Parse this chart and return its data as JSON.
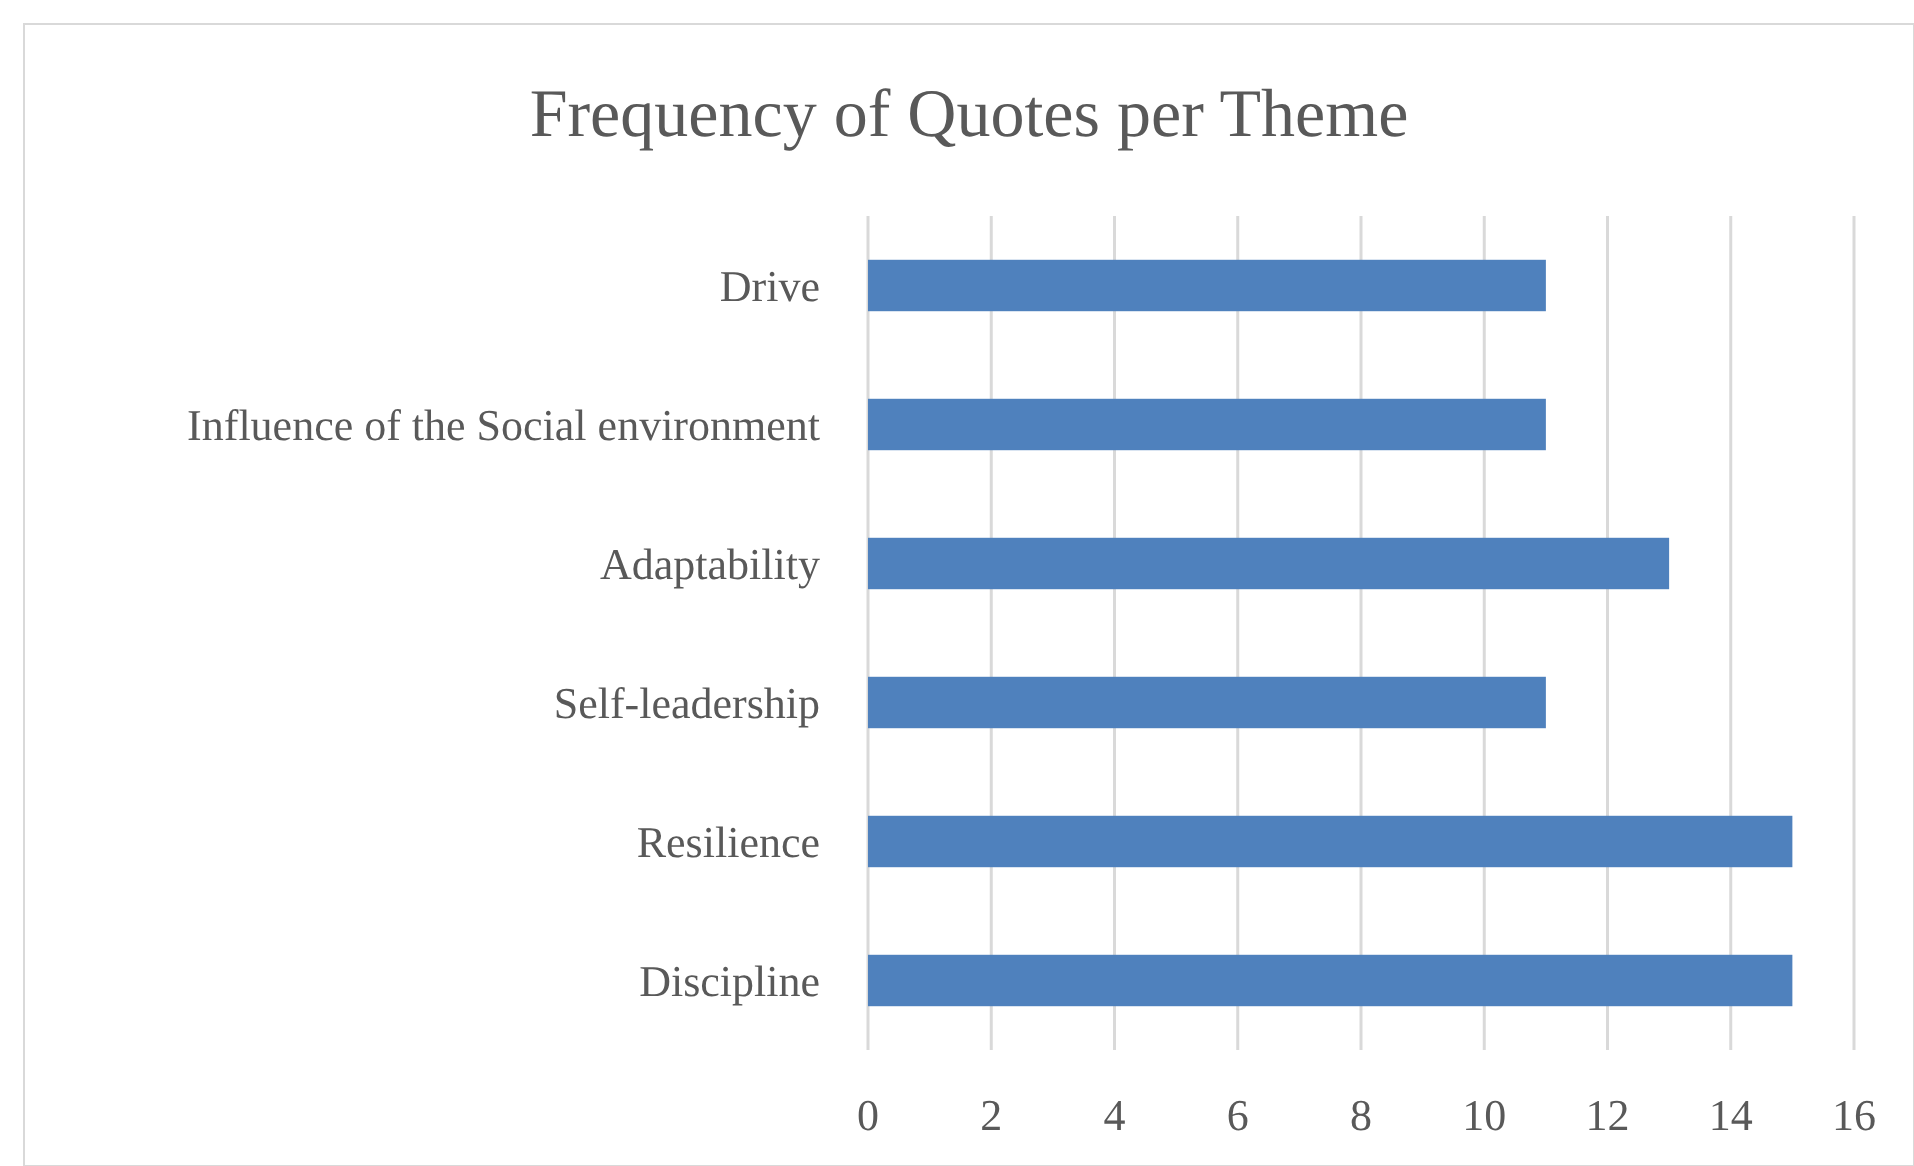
{
  "chart_data": {
    "type": "bar",
    "orientation": "horizontal",
    "title": "Frequency of Quotes per Theme",
    "categories": [
      "Drive",
      "Influence of the Social environment",
      "Adaptability",
      "Self-leadership",
      "Resilience",
      "Discipline"
    ],
    "values": [
      11,
      11,
      13,
      11,
      15,
      15
    ],
    "color": "#4f81bd",
    "xlim": [
      0,
      16
    ],
    "xticks": [
      0,
      2,
      4,
      6,
      8,
      10,
      12,
      14,
      16
    ],
    "grid": "x"
  }
}
